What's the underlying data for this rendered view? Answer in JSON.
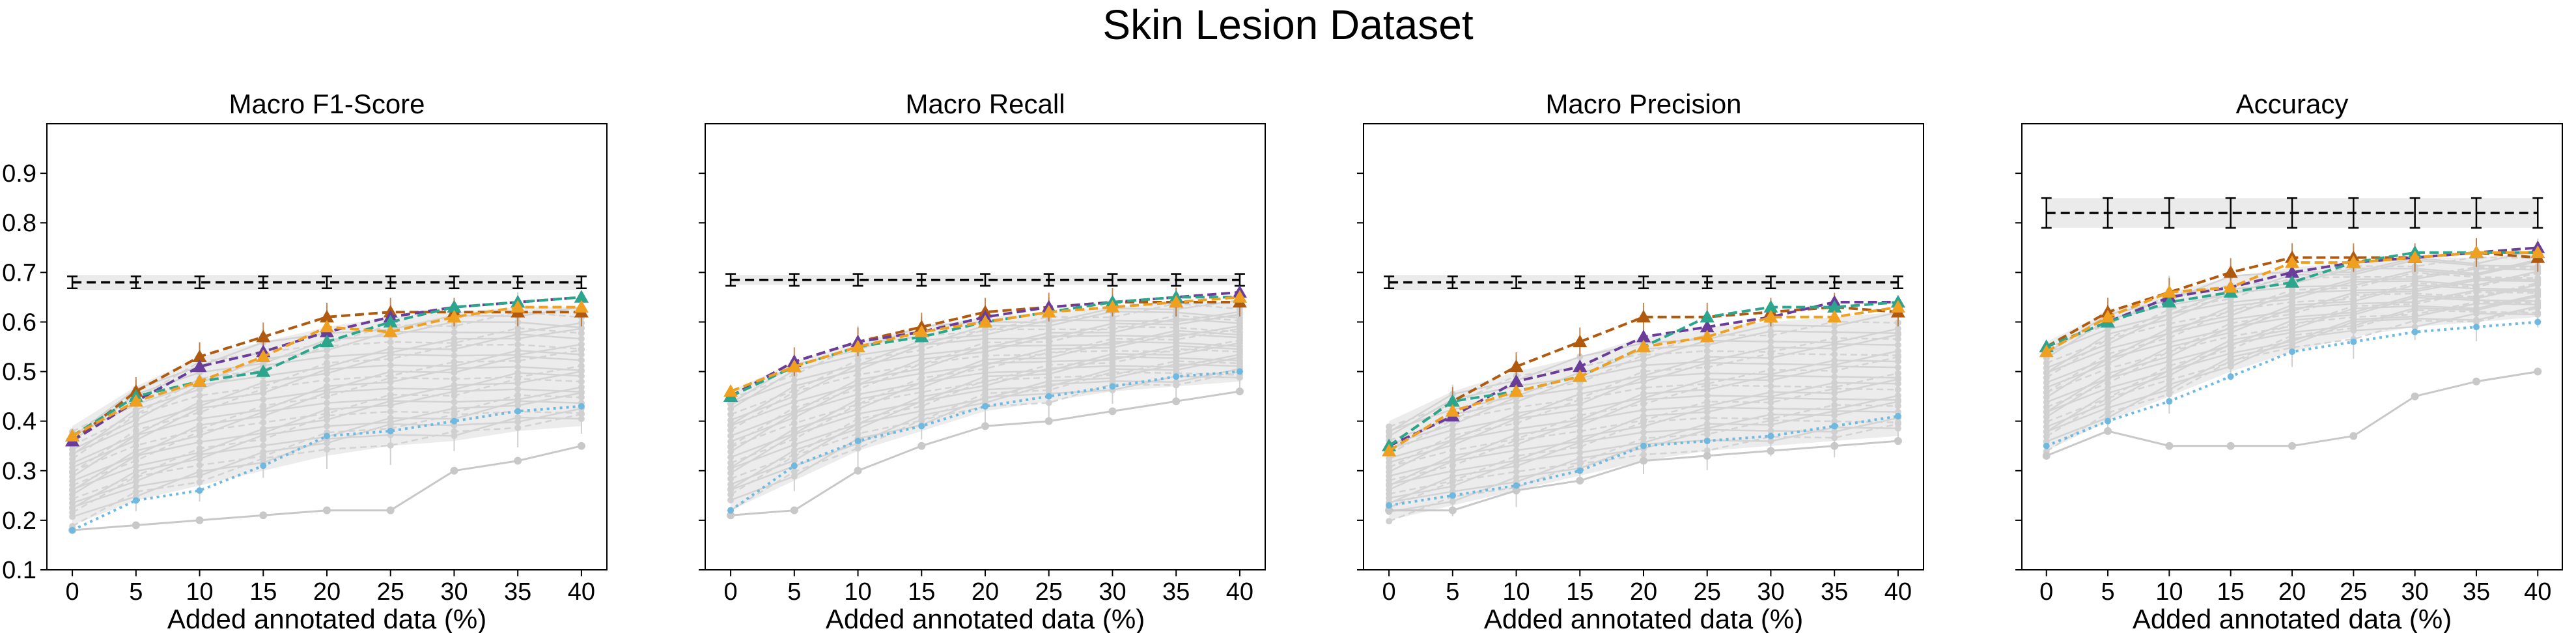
{
  "figure": {
    "title": "Skin Lesion Dataset"
  },
  "chart_data": [
    {
      "type": "line",
      "title": "Macro F1-Score",
      "xlabel": "Added annotated data (%)",
      "ylabel": "",
      "x": [
        0,
        5,
        10,
        15,
        20,
        25,
        30,
        35,
        40
      ],
      "xlim": [
        -2,
        42
      ],
      "ylim": [
        0.1,
        1.0
      ],
      "yticks": [
        "0.1",
        "0.2",
        "0.3",
        "0.4",
        "0.5",
        "0.6",
        "0.7",
        "0.8",
        "0.9"
      ],
      "xticks": [
        "0",
        "5",
        "10",
        "15",
        "20",
        "25",
        "30",
        "35",
        "40"
      ],
      "reference": {
        "values": [
          0.68,
          0.68,
          0.68,
          0.68,
          0.68,
          0.68,
          0.68,
          0.68,
          0.68
        ],
        "err": 0.012,
        "band": 0.015,
        "color": "#000000"
      },
      "baseline": {
        "values": [
          0.18,
          0.24,
          0.26,
          0.31,
          0.37,
          0.38,
          0.4,
          0.42,
          0.43
        ],
        "color": "#6fb8e0"
      },
      "series": [
        {
          "values": [
            0.36,
            0.46,
            0.53,
            0.57,
            0.61,
            0.62,
            0.62,
            0.62,
            0.62
          ],
          "color": "#b05a10"
        },
        {
          "values": [
            0.36,
            0.44,
            0.51,
            0.54,
            0.58,
            0.61,
            0.63,
            0.64,
            0.65
          ],
          "color": "#6a3d9a"
        },
        {
          "values": [
            0.37,
            0.45,
            0.48,
            0.5,
            0.56,
            0.6,
            0.63,
            0.64,
            0.65
          ],
          "color": "#2ca58d"
        },
        {
          "values": [
            0.37,
            0.44,
            0.48,
            0.53,
            0.59,
            0.58,
            0.61,
            0.63,
            0.63
          ],
          "color": "#f0a020"
        }
      ],
      "gray_band": {
        "lower": [
          0.19,
          0.24,
          0.27,
          0.3,
          0.33,
          0.35,
          0.36,
          0.38,
          0.39
        ],
        "upper": [
          0.39,
          0.47,
          0.53,
          0.56,
          0.59,
          0.61,
          0.62,
          0.63,
          0.63
        ]
      },
      "gray_lowest": [
        0.18,
        0.19,
        0.2,
        0.21,
        0.22,
        0.22,
        0.3,
        0.32,
        0.35
      ]
    },
    {
      "type": "line",
      "title": "Macro Recall",
      "xlabel": "Added annotated data (%)",
      "ylabel": "",
      "x": [
        0,
        5,
        10,
        15,
        20,
        25,
        30,
        35,
        40
      ],
      "xlim": [
        -2,
        42
      ],
      "ylim": [
        0.1,
        1.0
      ],
      "yticks": [
        "0.1",
        "0.2",
        "0.3",
        "0.4",
        "0.5",
        "0.6",
        "0.7",
        "0.8",
        "0.9"
      ],
      "xticks": [
        "0",
        "5",
        "10",
        "15",
        "20",
        "25",
        "30",
        "35",
        "40"
      ],
      "reference": {
        "values": [
          0.685,
          0.685,
          0.685,
          0.685,
          0.685,
          0.685,
          0.685,
          0.685,
          0.685
        ],
        "err": 0.012,
        "band": 0.01,
        "color": "#000000"
      },
      "baseline": {
        "values": [
          0.22,
          0.31,
          0.36,
          0.39,
          0.43,
          0.45,
          0.47,
          0.49,
          0.5
        ],
        "color": "#6fb8e0"
      },
      "series": [
        {
          "values": [
            0.45,
            0.52,
            0.56,
            0.59,
            0.62,
            0.63,
            0.64,
            0.64,
            0.64
          ],
          "color": "#b05a10"
        },
        {
          "values": [
            0.45,
            0.52,
            0.56,
            0.58,
            0.61,
            0.63,
            0.64,
            0.65,
            0.66
          ],
          "color": "#6a3d9a"
        },
        {
          "values": [
            0.45,
            0.51,
            0.55,
            0.57,
            0.6,
            0.62,
            0.64,
            0.65,
            0.65
          ],
          "color": "#2ca58d"
        },
        {
          "values": [
            0.46,
            0.51,
            0.55,
            0.58,
            0.6,
            0.62,
            0.63,
            0.64,
            0.65
          ],
          "color": "#f0a020"
        }
      ],
      "gray_band": {
        "lower": [
          0.22,
          0.28,
          0.34,
          0.38,
          0.42,
          0.44,
          0.46,
          0.47,
          0.48
        ],
        "upper": [
          0.46,
          0.52,
          0.56,
          0.59,
          0.61,
          0.62,
          0.63,
          0.64,
          0.64
        ]
      },
      "gray_lowest": [
        0.21,
        0.22,
        0.3,
        0.35,
        0.39,
        0.4,
        0.42,
        0.44,
        0.46
      ]
    },
    {
      "type": "line",
      "title": "Macro Precision",
      "xlabel": "Added annotated data (%)",
      "ylabel": "",
      "x": [
        0,
        5,
        10,
        15,
        20,
        25,
        30,
        35,
        40
      ],
      "xlim": [
        -2,
        42
      ],
      "ylim": [
        0.1,
        1.0
      ],
      "yticks": [
        "0.1",
        "0.2",
        "0.3",
        "0.4",
        "0.5",
        "0.6",
        "0.7",
        "0.8",
        "0.9"
      ],
      "xticks": [
        "0",
        "5",
        "10",
        "15",
        "20",
        "25",
        "30",
        "35",
        "40"
      ],
      "reference": {
        "values": [
          0.68,
          0.68,
          0.68,
          0.68,
          0.68,
          0.68,
          0.68,
          0.68,
          0.68
        ],
        "err": 0.012,
        "band": 0.015,
        "color": "#000000"
      },
      "baseline": {
        "values": [
          0.23,
          0.25,
          0.27,
          0.3,
          0.35,
          0.36,
          0.37,
          0.39,
          0.41
        ],
        "color": "#6fb8e0"
      },
      "series": [
        {
          "values": [
            0.35,
            0.44,
            0.51,
            0.56,
            0.61,
            0.61,
            0.62,
            0.63,
            0.62
          ],
          "color": "#b05a10"
        },
        {
          "values": [
            0.35,
            0.41,
            0.48,
            0.51,
            0.57,
            0.59,
            0.61,
            0.64,
            0.64
          ],
          "color": "#6a3d9a"
        },
        {
          "values": [
            0.35,
            0.44,
            0.46,
            0.49,
            0.55,
            0.61,
            0.63,
            0.63,
            0.64
          ],
          "color": "#2ca58d"
        },
        {
          "values": [
            0.34,
            0.42,
            0.46,
            0.49,
            0.55,
            0.57,
            0.61,
            0.61,
            0.63
          ],
          "color": "#f0a020"
        }
      ],
      "gray_band": {
        "lower": [
          0.2,
          0.23,
          0.26,
          0.29,
          0.32,
          0.34,
          0.35,
          0.36,
          0.37
        ],
        "upper": [
          0.4,
          0.46,
          0.5,
          0.53,
          0.57,
          0.59,
          0.6,
          0.61,
          0.62
        ]
      },
      "gray_lowest": [
        0.22,
        0.22,
        0.26,
        0.28,
        0.32,
        0.33,
        0.34,
        0.35,
        0.36
      ]
    },
    {
      "type": "line",
      "title": "Accuracy",
      "xlabel": "Added annotated data (%)",
      "ylabel": "",
      "x": [
        0,
        5,
        10,
        15,
        20,
        25,
        30,
        35,
        40
      ],
      "xlim": [
        -2,
        42
      ],
      "ylim": [
        0.1,
        1.0
      ],
      "yticks": [
        "0.1",
        "0.2",
        "0.3",
        "0.4",
        "0.5",
        "0.6",
        "0.7",
        "0.8",
        "0.9"
      ],
      "xticks": [
        "0",
        "5",
        "10",
        "15",
        "20",
        "25",
        "30",
        "35",
        "40"
      ],
      "reference": {
        "values": [
          0.82,
          0.82,
          0.82,
          0.82,
          0.82,
          0.82,
          0.82,
          0.82,
          0.82
        ],
        "err": 0.03,
        "band": 0.03,
        "color": "#000000"
      },
      "baseline": {
        "values": [
          0.35,
          0.4,
          0.44,
          0.49,
          0.54,
          0.56,
          0.58,
          0.59,
          0.6
        ],
        "color": "#6fb8e0"
      },
      "series": [
        {
          "values": [
            0.55,
            0.62,
            0.66,
            0.7,
            0.73,
            0.73,
            0.73,
            0.74,
            0.73
          ],
          "color": "#b05a10"
        },
        {
          "values": [
            0.55,
            0.6,
            0.65,
            0.67,
            0.7,
            0.72,
            0.73,
            0.74,
            0.75
          ],
          "color": "#6a3d9a"
        },
        {
          "values": [
            0.55,
            0.6,
            0.64,
            0.66,
            0.68,
            0.72,
            0.74,
            0.74,
            0.74
          ],
          "color": "#2ca58d"
        },
        {
          "values": [
            0.54,
            0.61,
            0.66,
            0.67,
            0.72,
            0.72,
            0.73,
            0.74,
            0.74
          ],
          "color": "#f0a020"
        }
      ],
      "gray_band": {
        "lower": [
          0.34,
          0.4,
          0.45,
          0.5,
          0.54,
          0.57,
          0.59,
          0.6,
          0.61
        ],
        "upper": [
          0.56,
          0.62,
          0.66,
          0.69,
          0.71,
          0.72,
          0.73,
          0.73,
          0.74
        ]
      },
      "gray_lowest": [
        0.33,
        0.38,
        0.35,
        0.35,
        0.35,
        0.37,
        0.45,
        0.48,
        0.5
      ]
    }
  ]
}
